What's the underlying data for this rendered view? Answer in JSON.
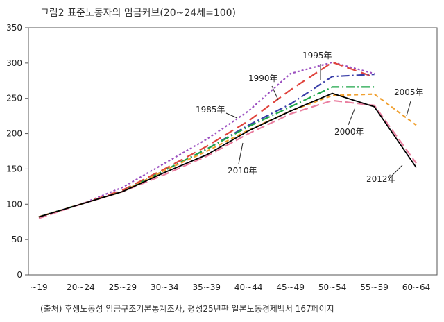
{
  "chart_data": {
    "type": "line",
    "title": "그림2 표준노동자의 임금커브(20~24세=100)",
    "source": "(출처) 후생노동성 임금구조기본통계조사, 평성25년판 일본노동경제백서 167페이지",
    "categories": [
      "~19",
      "20~24",
      "25~29",
      "30~34",
      "35~39",
      "40~44",
      "45~49",
      "50~54",
      "55~59",
      "60~64"
    ],
    "ylim": [
      0,
      350
    ],
    "yticks": [
      0,
      50,
      100,
      150,
      200,
      250,
      300,
      350
    ],
    "xlabel": "",
    "ylabel": "",
    "grid": false,
    "series": [
      {
        "name": "1985年",
        "color": "#9b4fc0",
        "dash": "3,3",
        "values": [
          82,
          100,
          124,
          158,
          192,
          232,
          285,
          301,
          285,
          null
        ]
      },
      {
        "name": "1990年",
        "color": "#e0453e",
        "dash": "14,7",
        "values": [
          82,
          100,
          120,
          150,
          182,
          218,
          262,
          301,
          280,
          null
        ]
      },
      {
        "name": "1995年",
        "color": "#3a3fa8",
        "dash": "12,4,2,4",
        "values": [
          82,
          100,
          118,
          148,
          178,
          212,
          242,
          281,
          284,
          null
        ]
      },
      {
        "name": "2000年",
        "color": "#1fa64a",
        "dash": "12,4,2,4",
        "values": [
          82,
          100,
          118,
          148,
          178,
          210,
          238,
          266,
          266,
          null
        ]
      },
      {
        "name": "2005年",
        "color": "#f0a030",
        "dash": "6,4",
        "values": [
          82,
          100,
          118,
          148,
          175,
          205,
          232,
          254,
          256,
          212
        ]
      },
      {
        "name": "2010年",
        "color": "#ea7fa0",
        "dash": "12,5",
        "values": [
          80,
          100,
          118,
          142,
          168,
          200,
          228,
          247,
          240,
          158
        ]
      },
      {
        "name": "2012年",
        "color": "#000000",
        "dash": "",
        "values": [
          82,
          100,
          118,
          145,
          170,
          204,
          232,
          257,
          238,
          152
        ]
      }
    ],
    "annotations": [
      {
        "text": "1985年",
        "series": "1985年"
      },
      {
        "text": "1990年",
        "series": "1990年"
      },
      {
        "text": "1995年",
        "series": "1995年"
      },
      {
        "text": "2000年",
        "series": "2000年"
      },
      {
        "text": "2005年",
        "series": "2005年"
      },
      {
        "text": "2010年",
        "series": "2010年"
      },
      {
        "text": "2012年",
        "series": "2012年"
      }
    ]
  }
}
